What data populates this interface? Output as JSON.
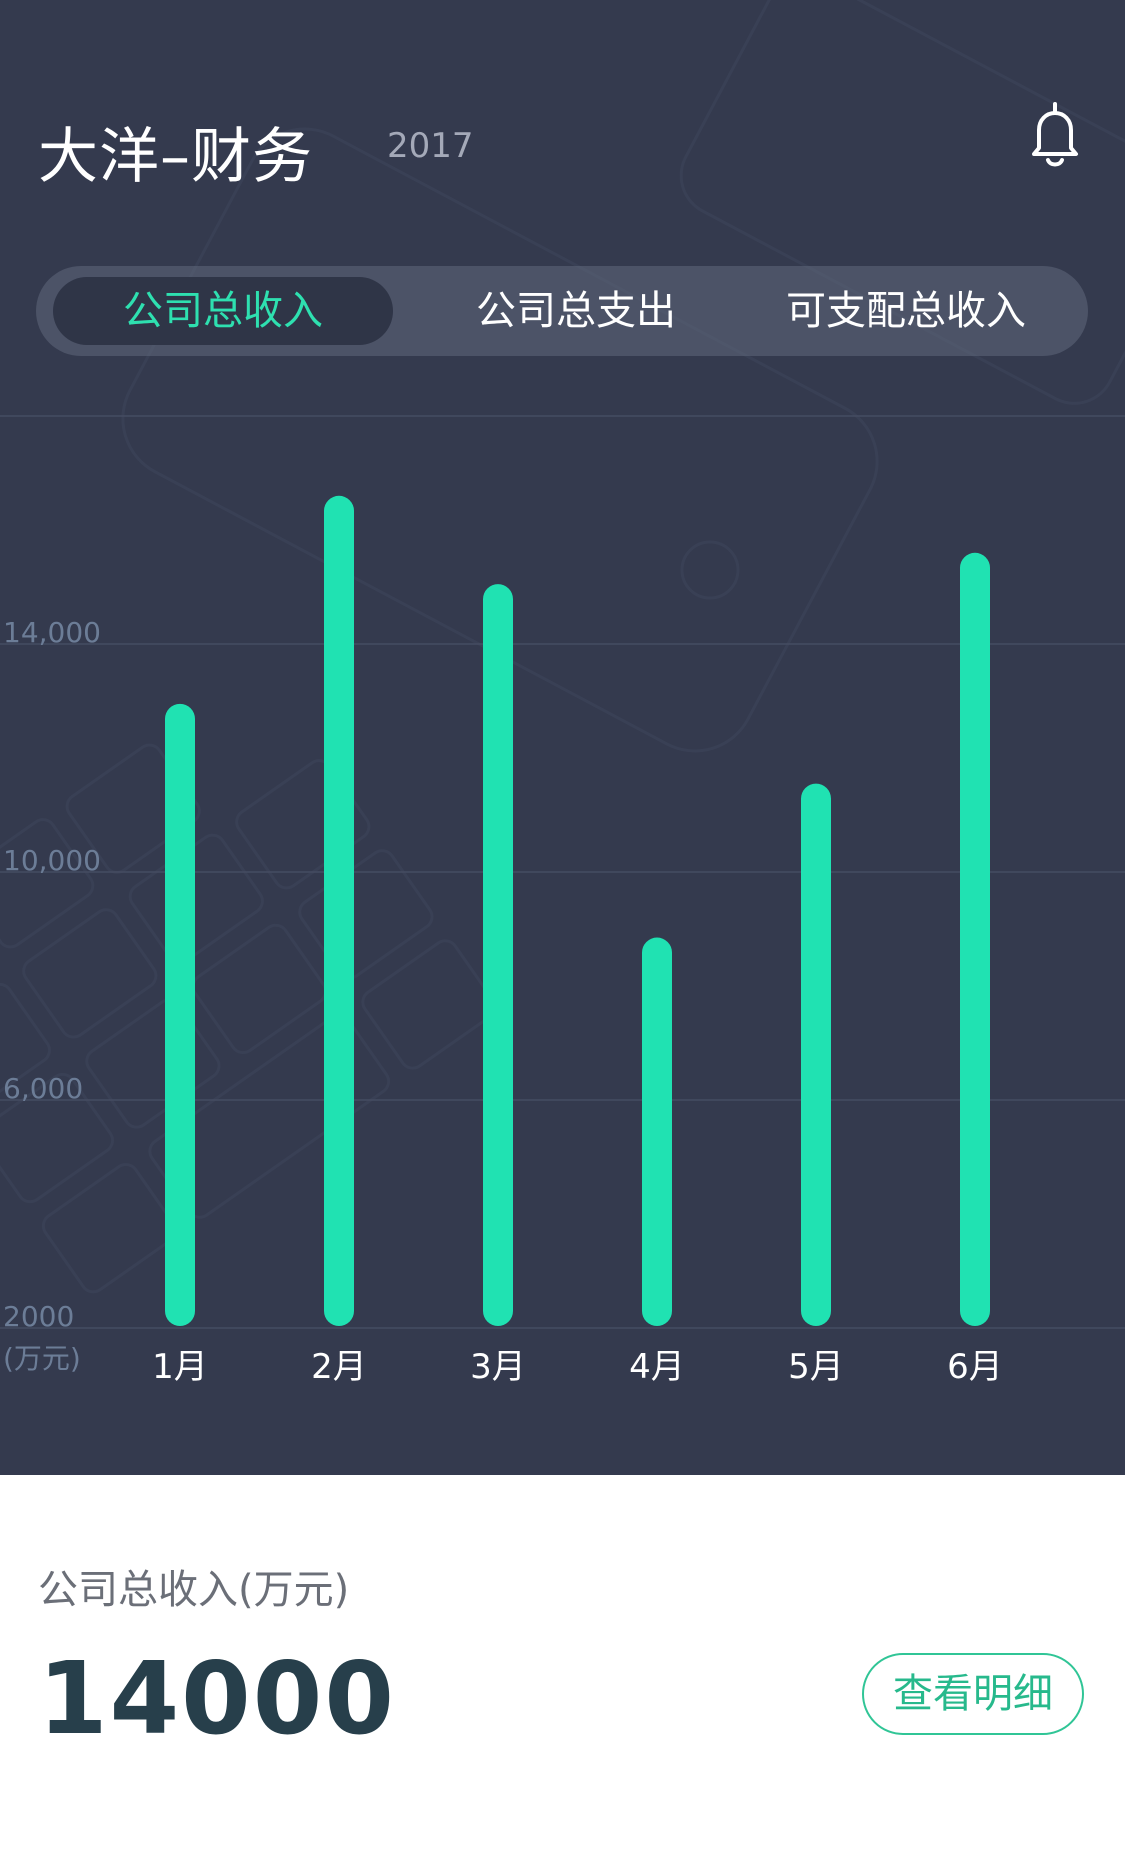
{
  "header": {
    "title": "大洋–财务",
    "year": "2017",
    "bell_icon": "bell-icon"
  },
  "tabs": [
    {
      "label": "公司总收入",
      "active": true
    },
    {
      "label": "公司总支出",
      "active": false
    },
    {
      "label": "可支配总收入",
      "active": false
    }
  ],
  "chart_data": {
    "type": "bar",
    "categories": [
      "1月",
      "2月",
      "3月",
      "4月",
      "5月",
      "6月"
    ],
    "values": [
      12950,
      16600,
      15050,
      8850,
      11550,
      15600
    ],
    "y_ticks": [
      {
        "value": 2000,
        "label": "2000"
      },
      {
        "value": 6000,
        "label": "6,000"
      },
      {
        "value": 10000,
        "label": "10,000"
      },
      {
        "value": 14000,
        "label": "14,000"
      }
    ],
    "ylabel": "(万元)",
    "ylim": [
      2000,
      18000
    ],
    "grid": true,
    "bar_color": "#20e2b2"
  },
  "summary": {
    "label": "公司总收入(万元)",
    "value": "14000",
    "detail_button": "查看明细"
  },
  "colors": {
    "background_dark": "#343a4e",
    "accent": "#20e2b2",
    "value_text": "#273f4b"
  }
}
